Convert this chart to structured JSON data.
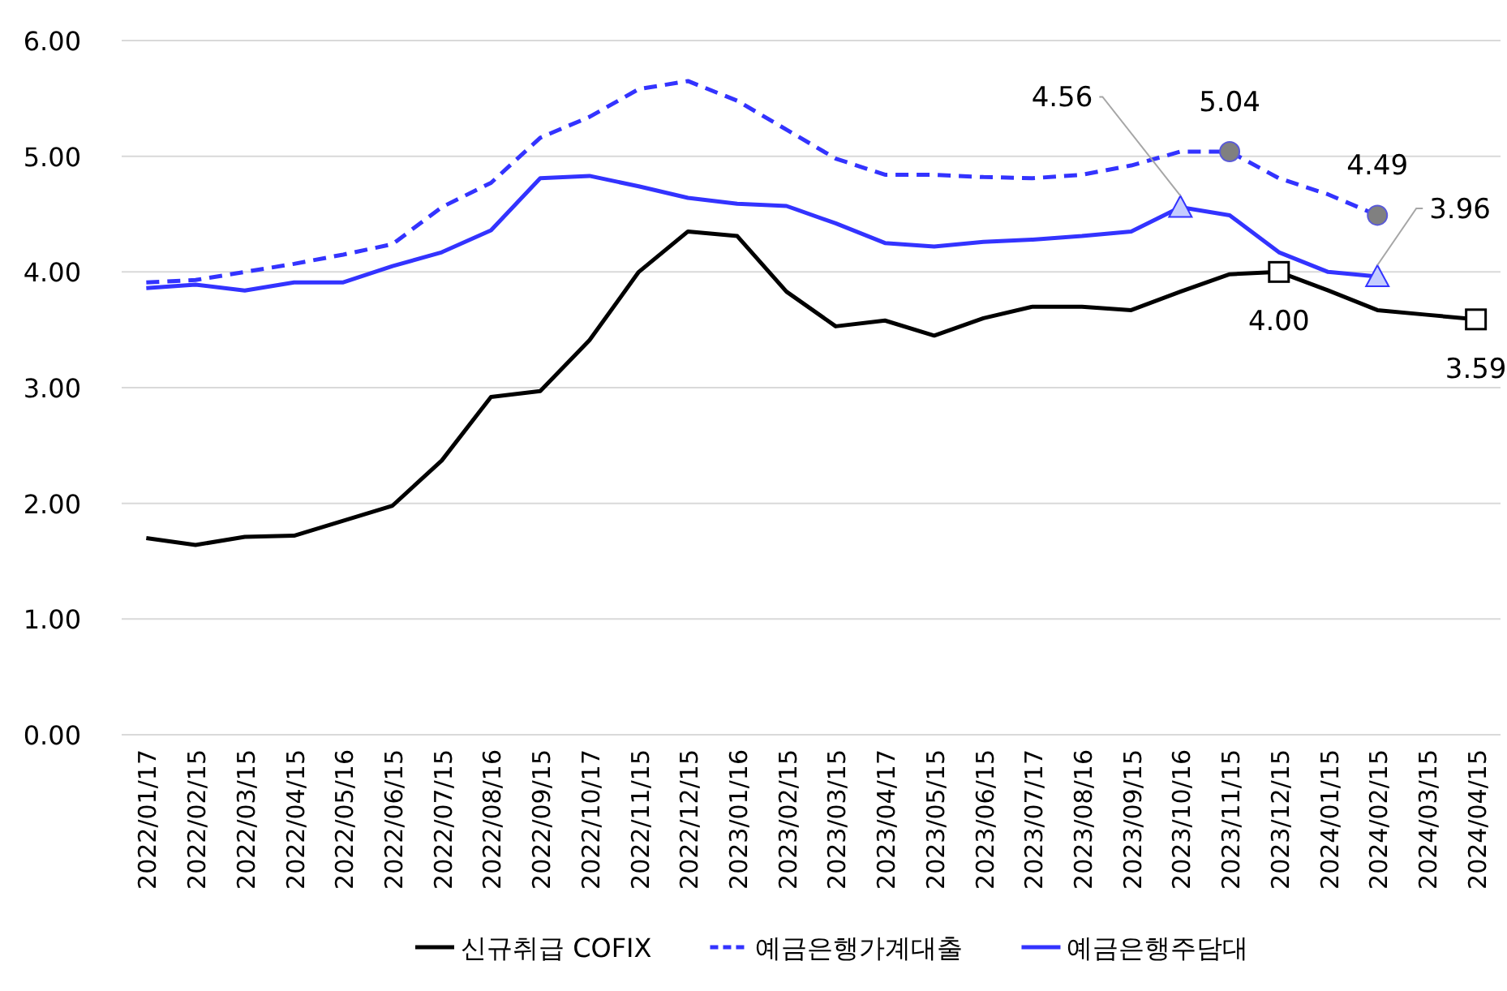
{
  "chart_data": {
    "type": "line",
    "categories": [
      "2022/01/17",
      "2022/02/15",
      "2022/03/15",
      "2022/04/15",
      "2022/05/16",
      "2022/06/15",
      "2022/07/15",
      "2022/08/16",
      "2022/09/15",
      "2022/10/17",
      "2022/11/15",
      "2022/12/15",
      "2023/01/16",
      "2023/02/15",
      "2023/03/15",
      "2023/04/17",
      "2023/05/15",
      "2023/06/15",
      "2023/07/17",
      "2023/08/16",
      "2023/09/15",
      "2023/10/16",
      "2023/11/15",
      "2023/12/15",
      "2024/01/15",
      "2024/02/15",
      "2024/03/15",
      "2024/04/15"
    ],
    "series": [
      {
        "name": "신규취급 COFIX",
        "color": "#000000",
        "line_style": "solid",
        "values": [
          1.7,
          1.64,
          1.71,
          1.72,
          1.85,
          1.98,
          2.37,
          2.92,
          2.97,
          3.41,
          4.0,
          4.35,
          4.31,
          3.83,
          3.53,
          3.58,
          3.45,
          3.6,
          3.7,
          3.7,
          3.67,
          3.83,
          3.98,
          4.0,
          3.84,
          3.67,
          3.63,
          3.59
        ],
        "value_labels": [
          null,
          null,
          null,
          null,
          null,
          null,
          null,
          null,
          null,
          null,
          null,
          null,
          null,
          null,
          null,
          null,
          null,
          null,
          null,
          null,
          null,
          null,
          null,
          "4.00",
          null,
          null,
          null,
          "3.59"
        ]
      },
      {
        "name": "예금은행가계대출",
        "color": "#3333ff",
        "line_style": "dashed",
        "values": [
          3.91,
          3.93,
          4.0,
          4.07,
          4.15,
          4.24,
          4.56,
          4.77,
          5.16,
          5.34,
          5.58,
          5.65,
          5.48,
          5.23,
          4.98,
          4.84,
          4.84,
          4.82,
          4.81,
          4.84,
          4.92,
          5.04,
          5.04,
          4.81,
          4.67,
          4.49,
          null,
          null
        ],
        "value_labels": [
          null,
          null,
          null,
          null,
          null,
          null,
          null,
          null,
          null,
          null,
          null,
          null,
          null,
          null,
          null,
          null,
          null,
          null,
          null,
          null,
          null,
          null,
          "5.04",
          null,
          null,
          "4.49",
          null,
          null
        ]
      },
      {
        "name": "예금은행주담대",
        "color": "#3333ff",
        "line_style": "solid",
        "values": [
          3.86,
          3.89,
          3.84,
          3.91,
          3.91,
          4.05,
          4.17,
          4.36,
          4.81,
          4.83,
          4.74,
          4.64,
          4.59,
          4.57,
          4.42,
          4.25,
          4.22,
          4.26,
          4.28,
          4.31,
          4.35,
          4.56,
          4.49,
          4.17,
          4.0,
          3.96,
          null,
          null
        ],
        "value_labels": [
          null,
          null,
          null,
          null,
          null,
          null,
          null,
          null,
          null,
          null,
          null,
          null,
          null,
          null,
          null,
          null,
          null,
          null,
          null,
          null,
          null,
          "4.56",
          null,
          null,
          null,
          "3.96",
          null,
          null
        ]
      }
    ],
    "ylim": [
      0,
      6
    ],
    "yticks": [
      {
        "value": 0,
        "label": "0.00"
      },
      {
        "value": 1,
        "label": "1.00"
      },
      {
        "value": 2,
        "label": "2.00"
      },
      {
        "value": 3,
        "label": "3.00"
      },
      {
        "value": 4,
        "label": "4.00"
      },
      {
        "value": 5,
        "label": "5.00"
      },
      {
        "value": 6,
        "label": "6.00"
      }
    ],
    "grid": "y",
    "legend": "bottom"
  }
}
